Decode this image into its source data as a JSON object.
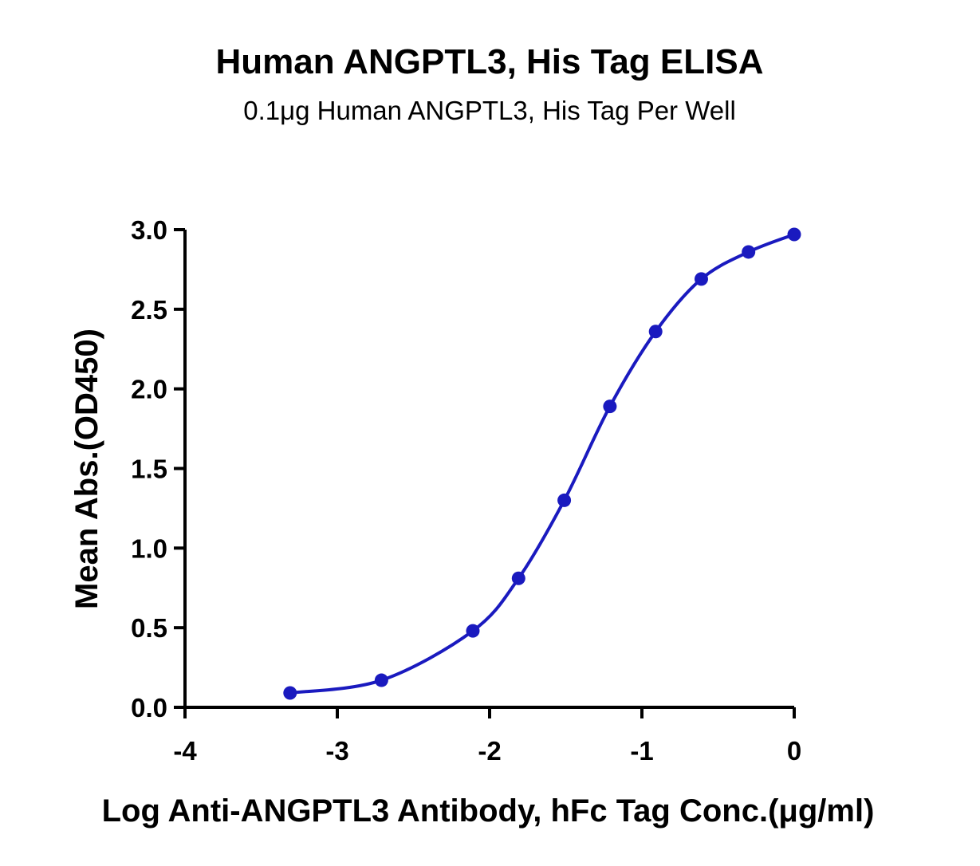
{
  "chart_data": {
    "type": "line",
    "title": "Human ANGPTL3, His Tag ELISA",
    "subtitle": "0.1μg Human ANGPTL3, His Tag Per Well",
    "xlabel": "Log Anti-ANGPTL3 Antibody, hFc Tag Conc.(μg/ml)",
    "ylabel": "Mean Abs.(OD450)",
    "xlim": [
      -4,
      0
    ],
    "ylim": [
      0,
      3.0
    ],
    "x_ticks": [
      "-4",
      "-3",
      "-2",
      "-1",
      "0"
    ],
    "y_ticks": [
      "0.0",
      "0.5",
      "1.0",
      "1.5",
      "2.0",
      "2.5",
      "3.0"
    ],
    "grid": false,
    "legend": "none",
    "series": [
      {
        "x": [
          -3.31,
          -2.71,
          -2.11,
          -1.81,
          -1.51,
          -1.21,
          -0.91,
          -0.61,
          -0.3,
          0.0
        ],
        "y": [
          0.09,
          0.17,
          0.48,
          0.81,
          1.3,
          1.89,
          2.36,
          2.69,
          2.86,
          2.97
        ],
        "color": "#1a1abf",
        "marker": "circle",
        "fit": "sigmoidal"
      }
    ]
  }
}
